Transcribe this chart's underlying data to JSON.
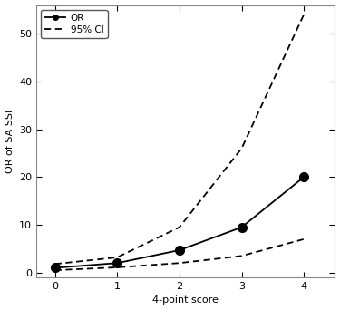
{
  "x": [
    0,
    1,
    2,
    3,
    4
  ],
  "or_values": [
    1.0,
    2.0,
    4.7,
    9.5,
    20.0
  ],
  "ci_upper": [
    1.8,
    3.2,
    9.5,
    26.0,
    54.0
  ],
  "ci_lower": [
    0.5,
    1.1,
    2.0,
    3.5,
    7.0
  ],
  "xlabel": "4-point score",
  "ylabel": "OR of SA SSI",
  "xlim": [
    -0.3,
    4.5
  ],
  "ylim": [
    -1,
    56
  ],
  "yticks": [
    0,
    10,
    20,
    30,
    40,
    50
  ],
  "xticks": [
    0,
    1,
    2,
    3,
    4
  ],
  "line_color": "#000000",
  "ci_color": "#000000",
  "background_color": "#ffffff",
  "legend_or": "OR",
  "legend_ci": "95% CI",
  "marker_size": 7,
  "line_width": 1.3
}
